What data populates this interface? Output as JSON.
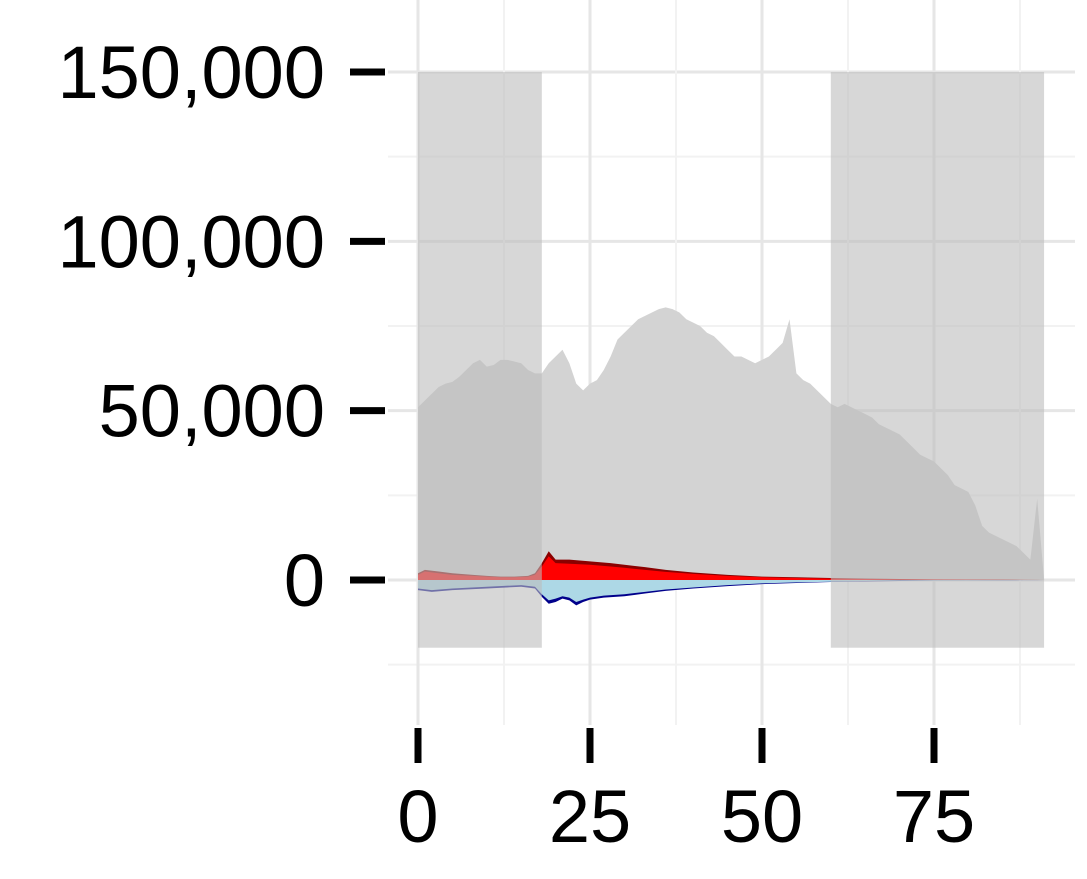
{
  "chart_data": {
    "type": "area",
    "title": "",
    "xlabel": "",
    "ylabel": "",
    "xlim": [
      -5,
      95
    ],
    "ylim": [
      -30000,
      170000
    ],
    "x_ticks": [
      0,
      25,
      50,
      75
    ],
    "x_tick_labels": [
      "0",
      "25",
      "50",
      "75"
    ],
    "y_ticks": [
      0,
      50000,
      100000,
      150000
    ],
    "y_tick_labels": [
      "0",
      "50,000",
      "100,000",
      "150,000"
    ],
    "grid": true,
    "legend": "none",
    "shaded_ranges": [
      {
        "x0": 0,
        "x1": 18,
        "y0": -20000,
        "y1": 150000,
        "color": "#bdbdbd"
      },
      {
        "x0": 60,
        "x1": 91,
        "y0": -20000,
        "y1": 150000,
        "color": "#bdbdbd"
      }
    ],
    "series": [
      {
        "color": "#d3d3d3",
        "x": [
          0,
          1,
          2,
          3,
          4,
          5,
          6,
          7,
          8,
          9,
          10,
          11,
          12,
          13,
          14,
          15,
          16,
          17,
          18,
          19,
          20,
          21,
          22,
          23,
          24,
          25,
          26,
          27,
          28,
          29,
          30,
          31,
          32,
          33,
          34,
          35,
          36,
          37,
          38,
          39,
          40,
          41,
          42,
          43,
          44,
          45,
          46,
          47,
          48,
          49,
          50,
          51,
          52,
          53,
          54,
          55,
          56,
          57,
          58,
          59,
          60,
          61,
          62,
          63,
          64,
          65,
          66,
          67,
          68,
          69,
          70,
          71,
          72,
          73,
          74,
          75,
          76,
          77,
          78,
          79,
          80,
          81,
          82,
          83,
          84,
          85,
          86,
          87,
          88,
          89,
          90,
          91
        ],
        "values": [
          51000,
          53000,
          55000,
          57000,
          58000,
          58500,
          60000,
          62000,
          64000,
          65000,
          63000,
          63500,
          65000,
          65000,
          64500,
          64000,
          62000,
          61000,
          61000,
          64000,
          66000,
          68000,
          64000,
          58000,
          56000,
          58000,
          59000,
          62000,
          66000,
          71000,
          73000,
          75000,
          77000,
          78000,
          79000,
          80000,
          80500,
          80000,
          79000,
          77000,
          76000,
          75000,
          73000,
          72000,
          70000,
          68000,
          66000,
          66000,
          65000,
          64000,
          65000,
          66000,
          68000,
          70000,
          77000,
          61000,
          59000,
          58000,
          56000,
          54000,
          52000,
          51000,
          52000,
          51000,
          50000,
          49000,
          48000,
          46000,
          45000,
          44000,
          43000,
          41000,
          39000,
          37000,
          36000,
          35000,
          33000,
          31000,
          28000,
          27000,
          26000,
          22000,
          16000,
          14000,
          13000,
          12000,
          11000,
          10000,
          8000,
          6000,
          24000,
          0
        ]
      },
      {
        "color": "#8b0000",
        "x": [
          0,
          1,
          3,
          5,
          8,
          10,
          12,
          14,
          16,
          17,
          18,
          19,
          20,
          22,
          25,
          28,
          30,
          33,
          36,
          40,
          45,
          50,
          55,
          60,
          65,
          70,
          75,
          80,
          85,
          88,
          90,
          91
        ],
        "values": [
          2000,
          3000,
          2500,
          2000,
          1500,
          1200,
          1000,
          1000,
          1200,
          2000,
          5000,
          8500,
          6000,
          6000,
          5500,
          5000,
          4500,
          3800,
          3000,
          2200,
          1500,
          1000,
          800,
          600,
          400,
          300,
          200,
          150,
          100,
          50,
          20,
          0
        ]
      },
      {
        "color": "#ff0000",
        "x": [
          0,
          1,
          3,
          5,
          8,
          10,
          12,
          14,
          16,
          17,
          18,
          19,
          20,
          22,
          25,
          28,
          30,
          33,
          36,
          40,
          45,
          50,
          55,
          60,
          65,
          70,
          75,
          80,
          85,
          88,
          90,
          91
        ],
        "values": [
          1500,
          2500,
          2000,
          1500,
          1200,
          1000,
          800,
          800,
          1000,
          1500,
          4000,
          7000,
          5000,
          4800,
          4500,
          4000,
          3600,
          3000,
          2400,
          1800,
          1200,
          800,
          600,
          400,
          300,
          200,
          150,
          100,
          80,
          40,
          15,
          0
        ]
      },
      {
        "color": "#00008b",
        "x": [
          0,
          2,
          5,
          10,
          15,
          17,
          18,
          19,
          20,
          21,
          22,
          23,
          24,
          25,
          27,
          30,
          33,
          36,
          40,
          45,
          50,
          55,
          60,
          65,
          70,
          75,
          80,
          85,
          88,
          90,
          91
        ],
        "values": [
          -3000,
          -3500,
          -3000,
          -2500,
          -2000,
          -2500,
          -5000,
          -7000,
          -6500,
          -5500,
          -6000,
          -7500,
          -6500,
          -5800,
          -5200,
          -4800,
          -4000,
          -3200,
          -2500,
          -1800,
          -1200,
          -900,
          -600,
          -400,
          -300,
          -200,
          -150,
          -100,
          -50,
          -20,
          0
        ]
      },
      {
        "color": "#add8e6",
        "x": [
          0,
          2,
          5,
          10,
          15,
          17,
          18,
          19,
          20,
          21,
          22,
          23,
          24,
          25,
          27,
          30,
          33,
          36,
          40,
          45,
          50,
          55,
          60,
          65,
          70,
          75,
          80,
          85,
          88,
          90,
          91
        ],
        "values": [
          -2500,
          -3000,
          -2500,
          -2000,
          -1500,
          -2000,
          -4200,
          -6000,
          -5500,
          -4800,
          -5200,
          -6500,
          -5800,
          -5200,
          -4600,
          -4200,
          -3500,
          -2800,
          -2200,
          -1500,
          -1000,
          -700,
          -500,
          -300,
          -200,
          -150,
          -100,
          -80,
          -40,
          -15,
          0
        ]
      }
    ]
  }
}
